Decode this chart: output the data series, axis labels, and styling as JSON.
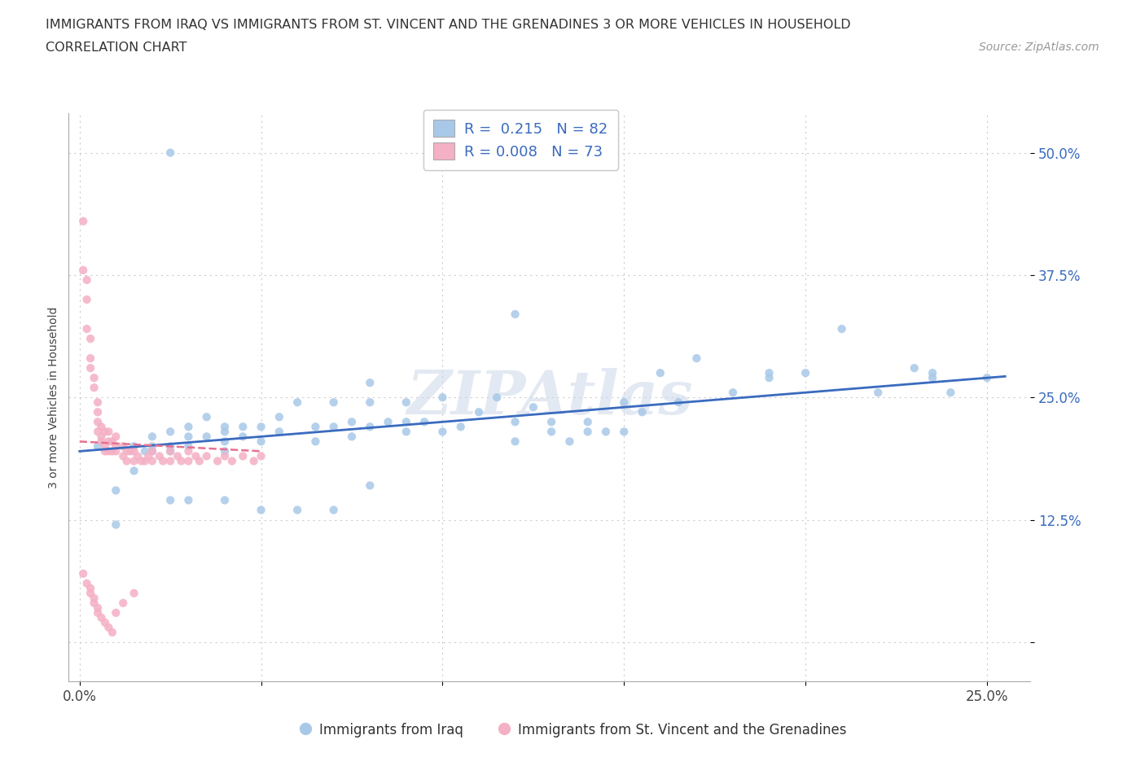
{
  "title_line1": "IMMIGRANTS FROM IRAQ VS IMMIGRANTS FROM ST. VINCENT AND THE GRENADINES 3 OR MORE VEHICLES IN HOUSEHOLD",
  "title_line2": "CORRELATION CHART",
  "source_text": "Source: ZipAtlas.com",
  "ylabel": "3 or more Vehicles in Household",
  "xlim": [
    -0.003,
    0.262
  ],
  "ylim": [
    -0.04,
    0.54
  ],
  "xticks": [
    0.0,
    0.05,
    0.1,
    0.15,
    0.2,
    0.25
  ],
  "xticklabels": [
    "0.0%",
    "",
    "",
    "",
    "",
    "25.0%"
  ],
  "yticks": [
    0.0,
    0.125,
    0.25,
    0.375,
    0.5
  ],
  "yticklabels": [
    "",
    "12.5%",
    "25.0%",
    "37.5%",
    "50.0%"
  ],
  "iraq_color": "#a8c8e8",
  "svg_color": "#f4b0c4",
  "iraq_line_color": "#3a6bbf",
  "svg_line_color": "#e87090",
  "legend_R_iraq": "0.215",
  "legend_N_iraq": "82",
  "legend_R_svg": "0.008",
  "legend_N_svg": "73",
  "legend_label_iraq": "Immigrants from Iraq",
  "legend_label_svg": "Immigrants from St. Vincent and the Grenadines",
  "iraq_x": [
    0.005,
    0.01,
    0.015,
    0.015,
    0.018,
    0.02,
    0.02,
    0.02,
    0.025,
    0.025,
    0.025,
    0.03,
    0.03,
    0.03,
    0.035,
    0.035,
    0.04,
    0.04,
    0.04,
    0.04,
    0.045,
    0.045,
    0.05,
    0.05,
    0.055,
    0.055,
    0.06,
    0.065,
    0.065,
    0.07,
    0.07,
    0.075,
    0.075,
    0.08,
    0.08,
    0.08,
    0.085,
    0.09,
    0.09,
    0.095,
    0.1,
    0.1,
    0.105,
    0.11,
    0.115,
    0.12,
    0.12,
    0.125,
    0.13,
    0.13,
    0.135,
    0.14,
    0.14,
    0.145,
    0.15,
    0.15,
    0.155,
    0.16,
    0.165,
    0.17,
    0.18,
    0.19,
    0.19,
    0.2,
    0.21,
    0.22,
    0.23,
    0.235,
    0.01,
    0.025,
    0.025,
    0.03,
    0.04,
    0.05,
    0.06,
    0.07,
    0.08,
    0.09,
    0.12,
    0.235,
    0.24,
    0.25
  ],
  "iraq_y": [
    0.2,
    0.155,
    0.2,
    0.175,
    0.195,
    0.21,
    0.195,
    0.2,
    0.215,
    0.2,
    0.195,
    0.22,
    0.21,
    0.2,
    0.23,
    0.21,
    0.205,
    0.215,
    0.22,
    0.195,
    0.22,
    0.21,
    0.22,
    0.205,
    0.23,
    0.215,
    0.245,
    0.205,
    0.22,
    0.245,
    0.22,
    0.225,
    0.21,
    0.265,
    0.245,
    0.22,
    0.225,
    0.215,
    0.245,
    0.225,
    0.25,
    0.215,
    0.22,
    0.235,
    0.25,
    0.205,
    0.225,
    0.24,
    0.225,
    0.215,
    0.205,
    0.225,
    0.215,
    0.215,
    0.245,
    0.215,
    0.235,
    0.275,
    0.245,
    0.29,
    0.255,
    0.27,
    0.275,
    0.275,
    0.32,
    0.255,
    0.28,
    0.275,
    0.12,
    0.5,
    0.145,
    0.145,
    0.145,
    0.135,
    0.135,
    0.135,
    0.16,
    0.225,
    0.335,
    0.27,
    0.255,
    0.27
  ],
  "svg_x": [
    0.001,
    0.001,
    0.002,
    0.002,
    0.002,
    0.003,
    0.003,
    0.003,
    0.004,
    0.004,
    0.005,
    0.005,
    0.005,
    0.005,
    0.006,
    0.006,
    0.006,
    0.007,
    0.007,
    0.007,
    0.008,
    0.008,
    0.008,
    0.009,
    0.009,
    0.01,
    0.01,
    0.01,
    0.012,
    0.012,
    0.013,
    0.013,
    0.014,
    0.015,
    0.015,
    0.016,
    0.017,
    0.018,
    0.019,
    0.02,
    0.02,
    0.022,
    0.023,
    0.025,
    0.025,
    0.027,
    0.028,
    0.03,
    0.03,
    0.032,
    0.033,
    0.035,
    0.038,
    0.04,
    0.042,
    0.045,
    0.048,
    0.05,
    0.001,
    0.002,
    0.003,
    0.003,
    0.004,
    0.004,
    0.005,
    0.005,
    0.006,
    0.007,
    0.008,
    0.009,
    0.01,
    0.012,
    0.015
  ],
  "svg_y": [
    0.43,
    0.38,
    0.37,
    0.35,
    0.32,
    0.31,
    0.29,
    0.28,
    0.27,
    0.26,
    0.245,
    0.235,
    0.225,
    0.215,
    0.22,
    0.21,
    0.205,
    0.215,
    0.2,
    0.195,
    0.215,
    0.205,
    0.195,
    0.205,
    0.195,
    0.21,
    0.2,
    0.195,
    0.2,
    0.19,
    0.195,
    0.185,
    0.195,
    0.195,
    0.185,
    0.19,
    0.185,
    0.185,
    0.19,
    0.195,
    0.185,
    0.19,
    0.185,
    0.195,
    0.185,
    0.19,
    0.185,
    0.195,
    0.185,
    0.19,
    0.185,
    0.19,
    0.185,
    0.19,
    0.185,
    0.19,
    0.185,
    0.19,
    0.07,
    0.06,
    0.055,
    0.05,
    0.045,
    0.04,
    0.035,
    0.03,
    0.025,
    0.02,
    0.015,
    0.01,
    0.03,
    0.04,
    0.05
  ]
}
